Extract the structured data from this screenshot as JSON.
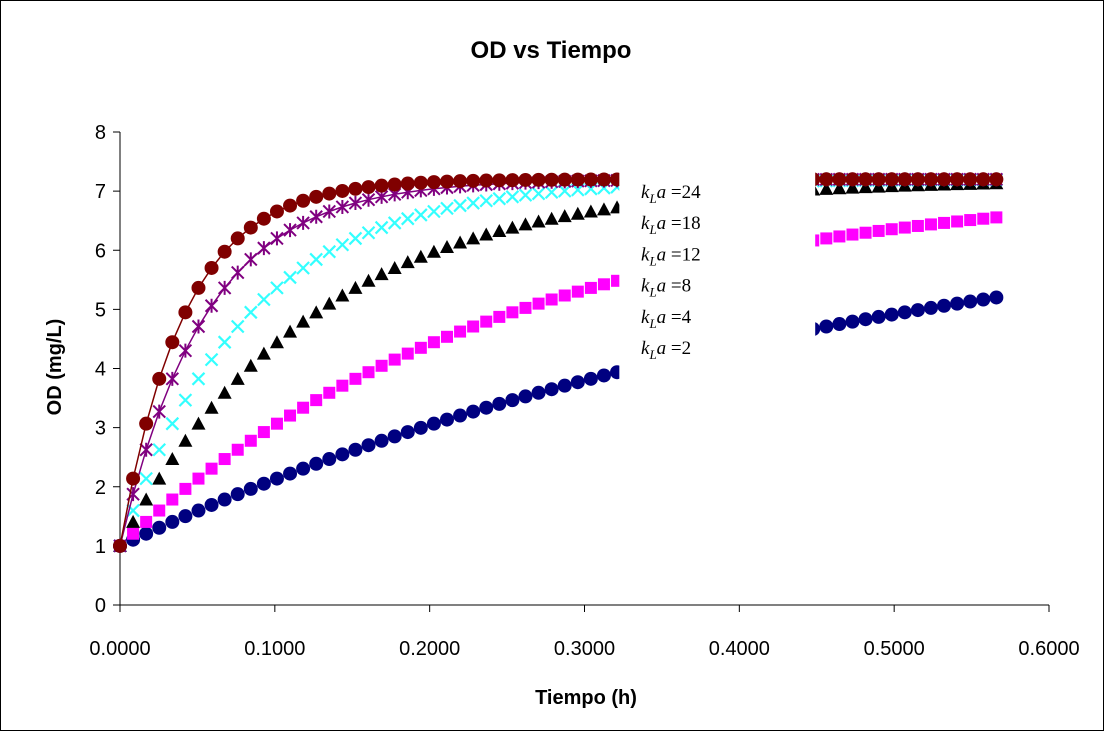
{
  "chart_data": {
    "type": "scatter",
    "title": "OD vs Tiempo",
    "xlabel": "Tiempo (h)",
    "ylabel": "OD (mg/L)",
    "xlim": [
      0,
      0.6
    ],
    "ylim": [
      0,
      8
    ],
    "x_ticks": [
      "0.0000",
      "0.1000",
      "0.2000",
      "0.3000",
      "0.4000",
      "0.5000",
      "0.6000"
    ],
    "y_ticks": [
      "0",
      "1",
      "2",
      "3",
      "4",
      "5",
      "6",
      "7",
      "8"
    ],
    "grid": false,
    "legend": "none",
    "model": {
      "c_sat": 7.2,
      "c0": 1.0,
      "x_start": 0,
      "x_end": 0.566,
      "points": 68,
      "gap_from": 0.3225,
      "gap_to": 0.449
    },
    "series": [
      {
        "kla": 2,
        "color": "#000080",
        "marker": "circle",
        "line": false
      },
      {
        "kla": 4,
        "color": "#FF00FF",
        "marker": "square",
        "line": false
      },
      {
        "kla": 8,
        "color": "#000000",
        "marker": "triangle",
        "line": false
      },
      {
        "kla": 12,
        "color": "#33FFFF",
        "marker": "x",
        "line": false
      },
      {
        "kla": 18,
        "color": "#800080",
        "marker": "star",
        "line": true
      },
      {
        "kla": 24,
        "color": "#800000",
        "marker": "circle",
        "line": true
      }
    ],
    "annotations": [
      {
        "k": "k",
        "sub": "L",
        "a": "a",
        "value": "=24"
      },
      {
        "k": "k",
        "sub": "L",
        "a": "a",
        "value": "=18"
      },
      {
        "k": "k",
        "sub": "L",
        "a": "a",
        "value": "=12"
      },
      {
        "k": "k",
        "sub": "L",
        "a": "a",
        "value": "=8"
      },
      {
        "k": "k",
        "sub": "L",
        "a": "a",
        "value": "=4"
      },
      {
        "k": "k",
        "sub": "L",
        "a": "a",
        "value": "=2"
      }
    ]
  }
}
